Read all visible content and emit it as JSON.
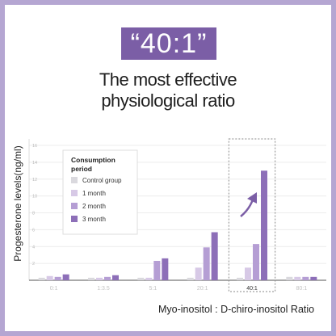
{
  "header": {
    "badge": "“40:1”",
    "headline_line1": "The most effective",
    "headline_line2": "physiological ratio"
  },
  "colors": {
    "accent": "#7b5ea6",
    "frame": "#b5a6d2",
    "control": "#dad9de",
    "month1": "#d7c9e6",
    "month2": "#b59ed4",
    "month3": "#8d6fb8",
    "highlight_arrow": "#7b5ea6"
  },
  "chart_data": {
    "type": "bar",
    "categories": [
      "0:1",
      "1:3.5",
      "5:1",
      "20:1",
      "40:1",
      "80:1"
    ],
    "series": [
      {
        "name": "Control group",
        "values": [
          0.3,
          0.3,
          0.3,
          0.3,
          0.3,
          0.4
        ]
      },
      {
        "name": "1 month",
        "values": [
          0.5,
          0.3,
          0.3,
          1.5,
          1.5,
          0.4
        ]
      },
      {
        "name": "2 month",
        "values": [
          0.4,
          0.4,
          2.3,
          3.9,
          4.3,
          0.4
        ]
      },
      {
        "name": "3 month",
        "values": [
          0.7,
          0.6,
          2.6,
          5.7,
          13.0,
          0.4
        ]
      }
    ],
    "ylabel": "Progesterone levels(ng/ml)",
    "xlabel": "Myo-inositol : D-chiro-inositol Ratio",
    "yticks": [
      2,
      4,
      6,
      8,
      10,
      12,
      14,
      16
    ],
    "ylim": [
      0,
      16
    ],
    "legend_title": "Consumption period",
    "legend_placement": "top-left",
    "highlighted_category": "40:1",
    "grid": true
  }
}
